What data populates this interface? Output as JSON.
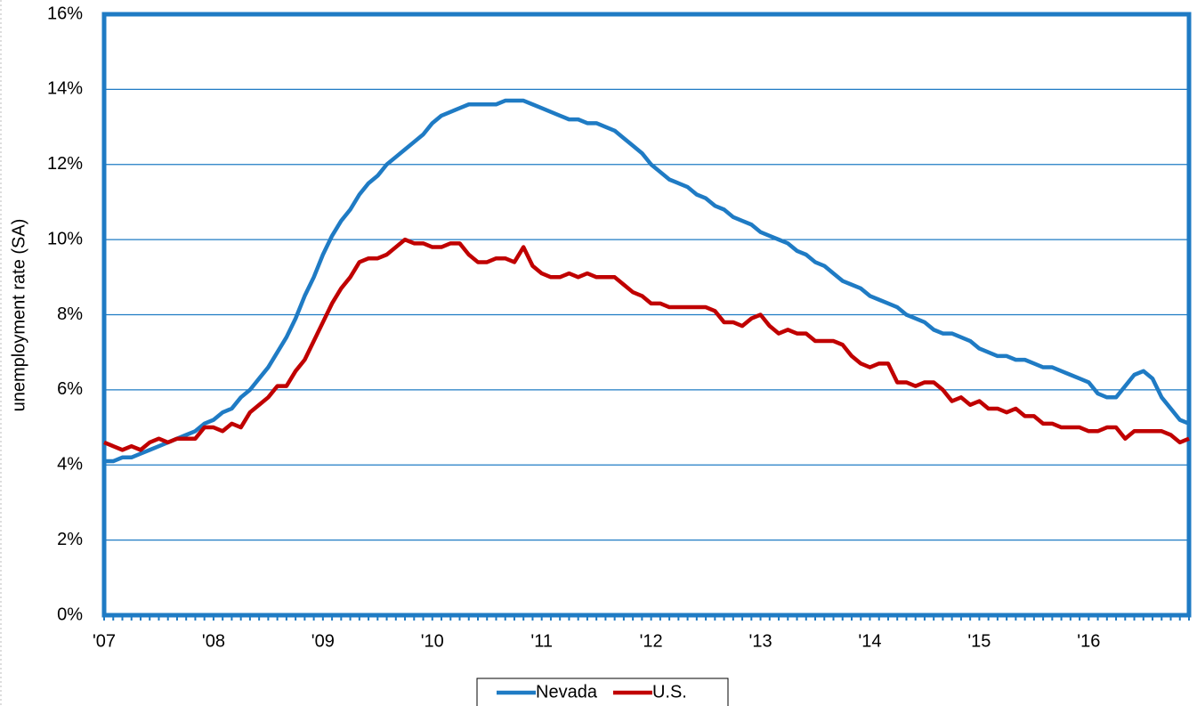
{
  "chart_data": {
    "type": "line",
    "y_label": "unemployment rate (SA)",
    "categories": [
      "'07",
      null,
      null,
      null,
      null,
      null,
      null,
      null,
      null,
      null,
      null,
      null,
      "'08",
      null,
      null,
      null,
      null,
      null,
      null,
      null,
      null,
      null,
      null,
      null,
      "'09",
      null,
      null,
      null,
      null,
      null,
      null,
      null,
      null,
      null,
      null,
      null,
      "'10",
      null,
      null,
      null,
      null,
      null,
      null,
      null,
      null,
      null,
      null,
      null,
      "'11",
      null,
      null,
      null,
      null,
      null,
      null,
      null,
      null,
      null,
      null,
      null,
      "'12",
      null,
      null,
      null,
      null,
      null,
      null,
      null,
      null,
      null,
      null,
      null,
      "'13",
      null,
      null,
      null,
      null,
      null,
      null,
      null,
      null,
      null,
      null,
      null,
      "'14",
      null,
      null,
      null,
      null,
      null,
      null,
      null,
      null,
      null,
      null,
      null,
      "'15",
      null,
      null,
      null,
      null,
      null,
      null,
      null,
      null,
      null,
      null,
      null,
      "'16",
      null,
      null,
      null,
      null,
      null,
      null,
      null,
      null,
      null,
      null,
      null
    ],
    "series": [
      {
        "name": "Nevada",
        "color": "#1f7bc4",
        "values": [
          4.1,
          4.1,
          4.2,
          4.2,
          4.3,
          4.4,
          4.5,
          4.6,
          4.7,
          4.8,
          4.9,
          5.1,
          5.2,
          5.4,
          5.5,
          5.8,
          6.0,
          6.3,
          6.6,
          7.0,
          7.4,
          7.9,
          8.5,
          9.0,
          9.6,
          10.1,
          10.5,
          10.8,
          11.2,
          11.5,
          11.7,
          12.0,
          12.2,
          12.4,
          12.6,
          12.8,
          13.1,
          13.3,
          13.4,
          13.5,
          13.6,
          13.6,
          13.6,
          13.6,
          13.7,
          13.7,
          13.7,
          13.6,
          13.5,
          13.4,
          13.3,
          13.2,
          13.2,
          13.1,
          13.1,
          13.0,
          12.9,
          12.7,
          12.5,
          12.3,
          12.0,
          11.8,
          11.6,
          11.5,
          11.4,
          11.2,
          11.1,
          10.9,
          10.8,
          10.6,
          10.5,
          10.4,
          10.2,
          10.1,
          10.0,
          9.9,
          9.7,
          9.6,
          9.4,
          9.3,
          9.1,
          8.9,
          8.8,
          8.7,
          8.5,
          8.4,
          8.3,
          8.2,
          8.0,
          7.9,
          7.8,
          7.6,
          7.5,
          7.5,
          7.4,
          7.3,
          7.1,
          7.0,
          6.9,
          6.9,
          6.8,
          6.8,
          6.7,
          6.6,
          6.6,
          6.5,
          6.4,
          6.3,
          6.2,
          5.9,
          5.8,
          5.8,
          6.1,
          6.4,
          6.5,
          6.3,
          5.8,
          5.5,
          5.2,
          5.1
        ]
      },
      {
        "name": "U.S.",
        "color": "#c00000",
        "values": [
          4.6,
          4.5,
          4.4,
          4.5,
          4.4,
          4.6,
          4.7,
          4.6,
          4.7,
          4.7,
          4.7,
          5.0,
          5.0,
          4.9,
          5.1,
          5.0,
          5.4,
          5.6,
          5.8,
          6.1,
          6.1,
          6.5,
          6.8,
          7.3,
          7.8,
          8.3,
          8.7,
          9.0,
          9.4,
          9.5,
          9.5,
          9.6,
          9.8,
          10.0,
          9.9,
          9.9,
          9.8,
          9.8,
          9.9,
          9.9,
          9.6,
          9.4,
          9.4,
          9.5,
          9.5,
          9.4,
          9.8,
          9.3,
          9.1,
          9.0,
          9.0,
          9.1,
          9.0,
          9.1,
          9.0,
          9.0,
          9.0,
          8.8,
          8.6,
          8.5,
          8.3,
          8.3,
          8.2,
          8.2,
          8.2,
          8.2,
          8.2,
          8.1,
          7.8,
          7.8,
          7.7,
          7.9,
          8.0,
          7.7,
          7.5,
          7.6,
          7.5,
          7.5,
          7.3,
          7.3,
          7.3,
          7.2,
          6.9,
          6.7,
          6.6,
          6.7,
          6.7,
          6.2,
          6.2,
          6.1,
          6.2,
          6.2,
          6.0,
          5.7,
          5.8,
          5.6,
          5.7,
          5.5,
          5.5,
          5.4,
          5.5,
          5.3,
          5.3,
          5.1,
          5.1,
          5.0,
          5.0,
          5.0,
          4.9,
          4.9,
          5.0,
          5.0,
          4.7,
          4.9,
          4.9,
          4.9,
          4.9,
          4.8,
          4.6,
          4.7
        ]
      }
    ],
    "ylim": [
      0,
      16
    ],
    "yticks": [
      {
        "value": 0,
        "label": "0%"
      },
      {
        "value": 2,
        "label": "2%"
      },
      {
        "value": 4,
        "label": "4%"
      },
      {
        "value": 6,
        "label": "6%"
      },
      {
        "value": 8,
        "label": "8%"
      },
      {
        "value": 10,
        "label": "10%"
      },
      {
        "value": 12,
        "label": "12%"
      },
      {
        "value": 14,
        "label": "14%"
      },
      {
        "value": 16,
        "label": "16%"
      }
    ],
    "grid": true,
    "legend": "bottom"
  }
}
